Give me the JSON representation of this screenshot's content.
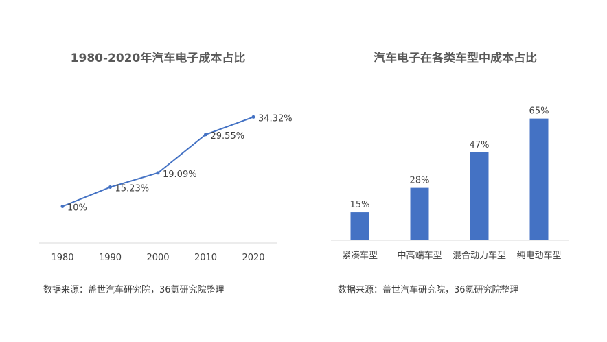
{
  "chart_data": [
    {
      "type": "line",
      "title": "1980-2020年汽车电子成本占比",
      "xlabel": "",
      "ylabel": "",
      "categories": [
        "1980",
        "1990",
        "2000",
        "2010",
        "2020"
      ],
      "series": [
        {
          "values": [
            10,
            15.23,
            19.09,
            29.55,
            34.32
          ],
          "labels": [
            "10%",
            "15.23%",
            "19.09%",
            "29.55%",
            "34.32%"
          ]
        }
      ],
      "ylim": [
        0,
        40
      ],
      "grid": false,
      "color": "#4472C4"
    },
    {
      "type": "bar",
      "title": "汽车电子在各类车型中成本占比",
      "xlabel": "",
      "ylabel": "",
      "categories": [
        "紧凑车型",
        "中高端车型",
        "混合动力车型",
        "纯电动车型"
      ],
      "values": [
        15,
        28,
        47,
        65
      ],
      "labels": [
        "15%",
        "28%",
        "47%",
        "65%"
      ],
      "ylim": [
        0,
        70
      ],
      "grid": false,
      "color": "#4472C4"
    }
  ],
  "sources": {
    "left": "数据来源：盖世汽车研究院，36氪研究院整理",
    "right": "数据来源：盖世汽车研究院，36氪研究院整理"
  }
}
